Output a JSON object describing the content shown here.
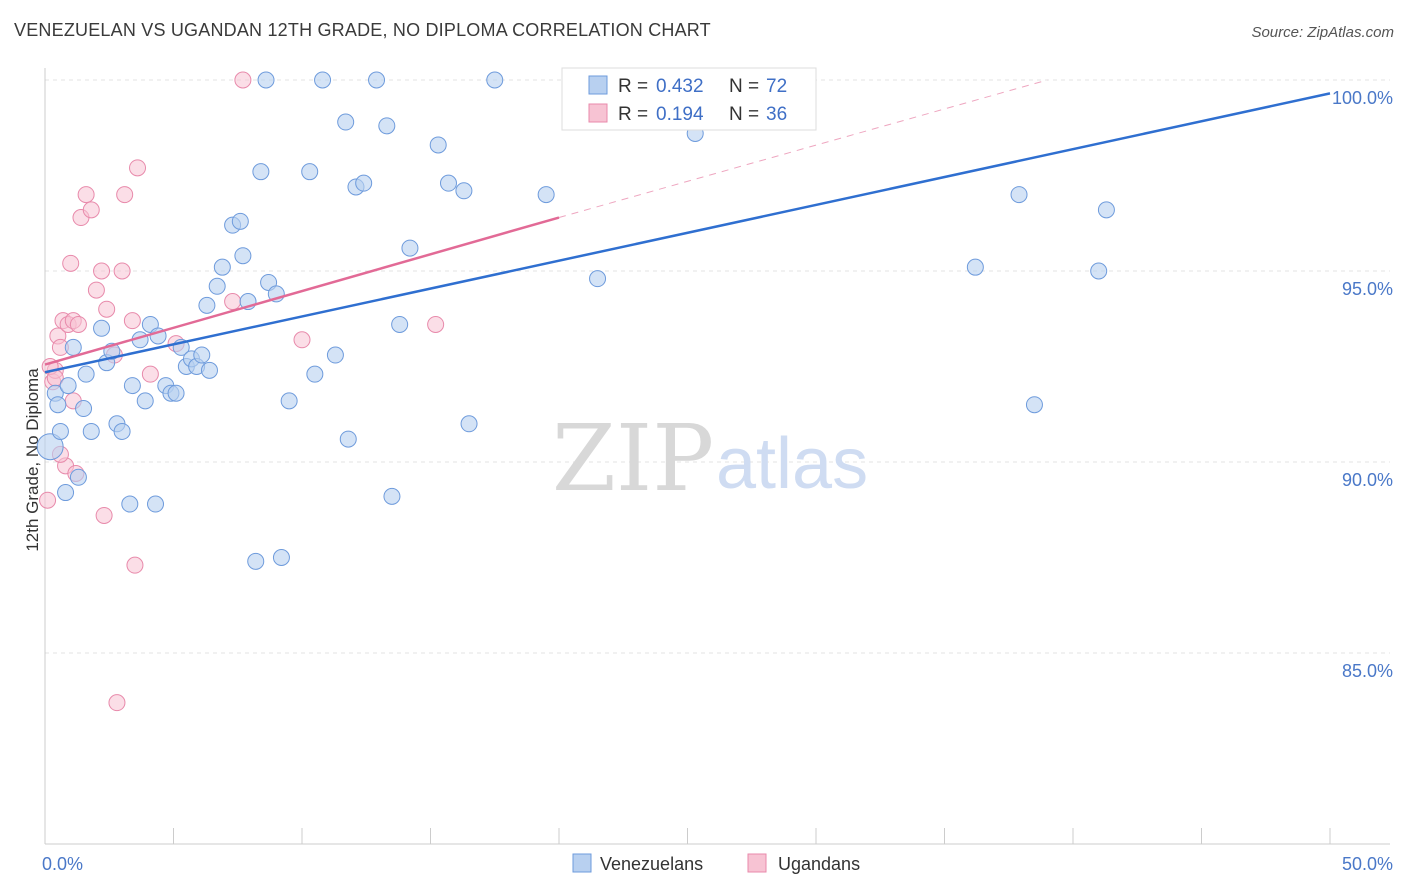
{
  "title": "VENEZUELAN VS UGANDAN 12TH GRADE, NO DIPLOMA CORRELATION CHART",
  "source": "Source: ZipAtlas.com",
  "watermark": {
    "part1": "ZIP",
    "part2": "atlas"
  },
  "legend": {
    "rows": [
      {
        "r_label": "R =",
        "r_value": "0.432",
        "n_label": "N =",
        "n_value": "72"
      },
      {
        "r_label": "R =",
        "r_value": "0.194",
        "n_label": "N =",
        "n_value": "36"
      }
    ]
  },
  "bottom_legend": [
    "Venezuelans",
    "Ugandans"
  ],
  "colors": {
    "venezuelans_fill": "#b8d0f0",
    "venezuelans_stroke": "#6e9bdc",
    "venezuelans_line": "#2f6fd0",
    "ugandans_fill": "#f7c3d3",
    "ugandans_stroke": "#e88aab",
    "ugandans_line": "#e26a96",
    "grid": "#e3e3e3",
    "tick_text": "#4a78c8"
  },
  "chart_data": {
    "type": "scatter",
    "title": "VENEZUELAN VS UGANDAN 12TH GRADE, NO DIPLOMA CORRELATION CHART",
    "xlabel": "",
    "ylabel": "12th Grade, No Diploma",
    "xlim": [
      0,
      50
    ],
    "ylim": [
      80.5,
      100.6
    ],
    "x_tick_labels": [
      "0.0%",
      "50.0%"
    ],
    "y_ticks": [
      85,
      90,
      95,
      100
    ],
    "y_tick_labels": [
      "85.0%",
      "90.0%",
      "95.0%",
      "100.0%"
    ],
    "grid": true,
    "legend_position": "top-center",
    "series": [
      {
        "name": "Venezuelans",
        "r": 0.432,
        "n": 72,
        "trend": {
          "x": [
            0,
            50
          ],
          "y": [
            92.35,
            99.65
          ],
          "style": "solid"
        },
        "points": [
          [
            0.2,
            90.4
          ],
          [
            0.4,
            91.8
          ],
          [
            0.6,
            90.8
          ],
          [
            0.8,
            89.2
          ],
          [
            0.9,
            92.0
          ],
          [
            1.1,
            93.0
          ],
          [
            1.3,
            89.6
          ],
          [
            1.5,
            91.4
          ],
          [
            1.6,
            92.3
          ],
          [
            1.8,
            90.8
          ],
          [
            2.2,
            93.5
          ],
          [
            2.4,
            92.6
          ],
          [
            2.6,
            92.9
          ],
          [
            2.8,
            91.0
          ],
          [
            3.0,
            90.8
          ],
          [
            3.3,
            88.9
          ],
          [
            3.4,
            92.0
          ],
          [
            3.7,
            93.2
          ],
          [
            3.9,
            91.6
          ],
          [
            4.1,
            93.6
          ],
          [
            4.3,
            88.9
          ],
          [
            4.4,
            93.3
          ],
          [
            4.7,
            92.0
          ],
          [
            4.9,
            91.8
          ],
          [
            5.1,
            91.8
          ],
          [
            5.3,
            93.0
          ],
          [
            5.5,
            92.5
          ],
          [
            5.7,
            92.7
          ],
          [
            5.9,
            92.5
          ],
          [
            6.1,
            92.8
          ],
          [
            6.3,
            94.1
          ],
          [
            6.4,
            92.4
          ],
          [
            6.7,
            94.6
          ],
          [
            6.9,
            95.1
          ],
          [
            7.3,
            96.2
          ],
          [
            7.6,
            96.3
          ],
          [
            7.7,
            95.4
          ],
          [
            7.9,
            94.2
          ],
          [
            8.2,
            87.4
          ],
          [
            8.4,
            97.6
          ],
          [
            8.6,
            100.0
          ],
          [
            8.7,
            94.7
          ],
          [
            9.0,
            94.4
          ],
          [
            9.2,
            87.5
          ],
          [
            9.5,
            91.6
          ],
          [
            10.3,
            97.6
          ],
          [
            10.5,
            92.3
          ],
          [
            10.8,
            100.0
          ],
          [
            11.3,
            92.8
          ],
          [
            11.7,
            98.9
          ],
          [
            11.8,
            90.6
          ],
          [
            12.1,
            97.2
          ],
          [
            12.4,
            97.3
          ],
          [
            12.9,
            100.0
          ],
          [
            13.3,
            98.8
          ],
          [
            13.5,
            89.1
          ],
          [
            13.8,
            93.6
          ],
          [
            14.2,
            95.6
          ],
          [
            15.3,
            98.3
          ],
          [
            15.7,
            97.3
          ],
          [
            16.3,
            97.1
          ],
          [
            16.5,
            91.0
          ],
          [
            17.5,
            100.0
          ],
          [
            19.5,
            97.0
          ],
          [
            21.5,
            94.8
          ],
          [
            25.3,
            98.6
          ],
          [
            36.2,
            95.1
          ],
          [
            37.9,
            97.0
          ],
          [
            38.5,
            91.5
          ],
          [
            41.0,
            95.0
          ],
          [
            41.3,
            96.6
          ],
          [
            0.5,
            91.5
          ]
        ]
      },
      {
        "name": "Ugandans",
        "r": 0.194,
        "n": 36,
        "trend": {
          "x": [
            0,
            20
          ],
          "y": [
            92.55,
            96.4
          ],
          "style": "solid",
          "extension": {
            "x": [
              20,
              39
            ],
            "y": [
              96.4,
              100.0
            ],
            "style": "dashed"
          }
        },
        "points": [
          [
            0.1,
            89.0
          ],
          [
            0.3,
            92.1
          ],
          [
            0.4,
            92.4
          ],
          [
            0.5,
            93.3
          ],
          [
            0.6,
            93.0
          ],
          [
            0.7,
            93.7
          ],
          [
            0.8,
            89.9
          ],
          [
            0.9,
            93.6
          ],
          [
            1.0,
            95.2
          ],
          [
            1.1,
            93.7
          ],
          [
            1.2,
            89.7
          ],
          [
            1.3,
            93.6
          ],
          [
            1.4,
            96.4
          ],
          [
            1.6,
            97.0
          ],
          [
            1.8,
            96.6
          ],
          [
            2.0,
            94.5
          ],
          [
            2.2,
            95.0
          ],
          [
            2.3,
            88.6
          ],
          [
            2.4,
            94.0
          ],
          [
            2.7,
            92.8
          ],
          [
            2.8,
            83.7
          ],
          [
            3.0,
            95.0
          ],
          [
            3.1,
            97.0
          ],
          [
            3.4,
            93.7
          ],
          [
            3.5,
            87.3
          ],
          [
            3.6,
            97.7
          ],
          [
            4.1,
            92.3
          ],
          [
            5.1,
            93.1
          ],
          [
            7.3,
            94.2
          ],
          [
            7.7,
            100.0
          ],
          [
            10.0,
            93.2
          ],
          [
            15.2,
            93.6
          ],
          [
            0.2,
            92.5
          ],
          [
            0.6,
            90.2
          ],
          [
            1.1,
            91.6
          ],
          [
            0.4,
            92.2
          ]
        ]
      }
    ]
  }
}
